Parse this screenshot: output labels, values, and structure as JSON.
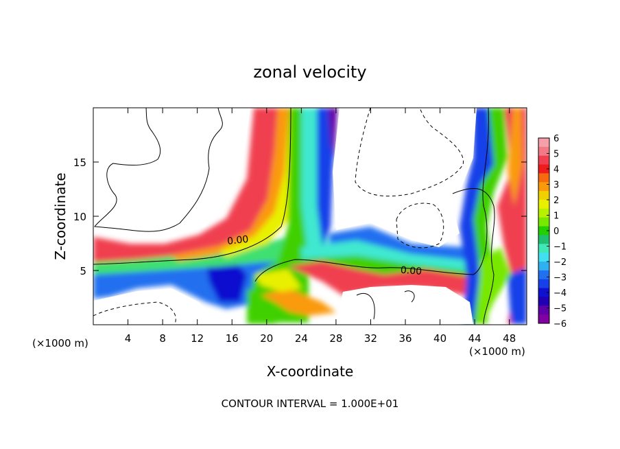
{
  "chart_data": {
    "type": "heatmap",
    "title": "zonal velocity",
    "xlabel": "X-coordinate",
    "ylabel": "Z-coordinate",
    "x_unit_left": "(×1000 m)",
    "x_unit_right": "(×1000 m)",
    "xlim": [
      0,
      50
    ],
    "ylim": [
      0,
      20
    ],
    "x_ticks": [
      4,
      8,
      12,
      16,
      20,
      24,
      28,
      32,
      36,
      40,
      44,
      48
    ],
    "y_ticks": [
      5,
      10,
      15
    ],
    "contour_labels": [
      "0.00",
      "0.00"
    ],
    "footer": "CONTOUR INTERVAL = 1.000E+01",
    "colorbar": {
      "ticks": [
        "6",
        "5",
        "4",
        "3",
        "2",
        "1",
        "0",
        "−1",
        "−2",
        "−3",
        "−4",
        "−5",
        "−6"
      ],
      "colors": [
        "#f5a0a8",
        "#f27a86",
        "#f04050",
        "#ee1c1c",
        "#f86a10",
        "#fa9a0a",
        "#f0d000",
        "#e8f000",
        "#b8f000",
        "#78e800",
        "#22d000",
        "#20c070",
        "#40e8b8",
        "#40e0f0",
        "#30b0f0",
        "#2070f0",
        "#1840e8",
        "#1010d0",
        "#2000b0",
        "#6000a8",
        "#8000a0"
      ]
    }
  }
}
